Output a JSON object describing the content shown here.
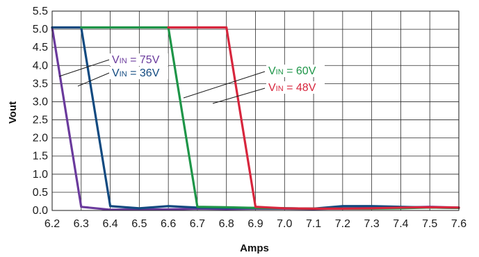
{
  "chart_data": {
    "type": "line",
    "title": "",
    "xlabel": "Amps",
    "ylabel": "Vout",
    "xlim": [
      6.2,
      7.6
    ],
    "ylim": [
      0,
      5.5
    ],
    "x_ticks": [
      "6.2",
      "6.3",
      "6.4",
      "6.5",
      "6.6",
      "6.7",
      "6.8",
      "6.9",
      "7.0",
      "7.1",
      "7.2",
      "7.3",
      "7.4",
      "7.5",
      "7.6"
    ],
    "y_ticks": [
      "0.0",
      "0.5",
      "1.0",
      "1.5",
      "2.0",
      "2.5",
      "3.0",
      "3.5",
      "4.0",
      "4.5",
      "5.0",
      "5.5"
    ],
    "grid": true,
    "legend": "inline annotations",
    "series": [
      {
        "name": "VIN = 75V",
        "label_prefix": "V",
        "label_sub": "IN",
        "label_suffix": " = 75V",
        "color": "#6a3a9c",
        "x": [
          6.2,
          6.3,
          6.4,
          6.5,
          6.6,
          6.7,
          6.8,
          6.9,
          7.0,
          7.1,
          7.2,
          7.3,
          7.4,
          7.5,
          7.6
        ],
        "y": [
          5.05,
          0.1,
          0.02,
          0.03,
          0.03,
          0.05,
          0.04,
          0.05,
          0.05,
          0.04,
          0.06,
          0.07,
          0.08,
          0.1,
          0.08
        ]
      },
      {
        "name": "VIN = 36V",
        "label_prefix": "V",
        "label_sub": "IN",
        "label_suffix": " = 36V",
        "color": "#124a80",
        "x": [
          6.2,
          6.3,
          6.4,
          6.5,
          6.6,
          6.7,
          6.8,
          6.9,
          7.0,
          7.1,
          7.2,
          7.3,
          7.4,
          7.5,
          7.6
        ],
        "y": [
          5.05,
          5.05,
          0.12,
          0.06,
          0.12,
          0.08,
          0.07,
          0.07,
          0.06,
          0.05,
          0.12,
          0.12,
          0.1,
          0.08,
          0.07
        ]
      },
      {
        "name": "VIN = 60V",
        "label_prefix": "V",
        "label_sub": "IN",
        "label_suffix": " = 60V",
        "color": "#1e9548",
        "x": [
          6.3,
          6.4,
          6.5,
          6.6,
          6.7,
          6.8,
          6.9,
          7.0,
          7.1,
          7.2,
          7.3,
          7.4,
          7.5,
          7.6
        ],
        "y": [
          5.05,
          5.05,
          5.05,
          5.05,
          0.1,
          0.09,
          0.07,
          0.06,
          0.05,
          0.05,
          0.05,
          0.06,
          0.08,
          0.07
        ]
      },
      {
        "name": "VIN = 48V",
        "label_prefix": "V",
        "label_sub": "IN",
        "label_suffix": " = 48V",
        "color": "#d7263d",
        "x": [
          6.6,
          6.7,
          6.8,
          6.9,
          7.0,
          7.1,
          7.2,
          7.3,
          7.4,
          7.5,
          7.6
        ],
        "y": [
          5.05,
          5.05,
          5.05,
          0.1,
          0.06,
          0.05,
          0.05,
          0.06,
          0.08,
          0.09,
          0.08
        ]
      }
    ]
  }
}
